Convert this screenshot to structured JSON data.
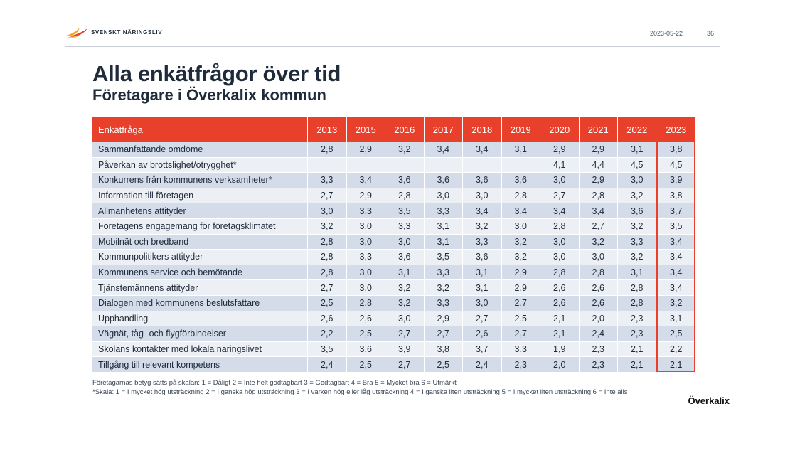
{
  "header": {
    "logo_text": "SVENSKT NÄRINGSLIV",
    "date": "2023-05-22",
    "page_number": "36"
  },
  "title": "Alla enkätfrågor över tid",
  "subtitle": "Företagare i Överkalix kommun",
  "table": {
    "question_header": "Enkätfråga",
    "years": [
      "2013",
      "2015",
      "2016",
      "2017",
      "2018",
      "2019",
      "2020",
      "2021",
      "2022",
      "2023"
    ],
    "rows": [
      {
        "q": "Sammanfattande omdöme",
        "v": [
          "2,8",
          "2,9",
          "3,2",
          "3,4",
          "3,4",
          "3,1",
          "2,9",
          "2,9",
          "3,1",
          "3,8"
        ]
      },
      {
        "q": "Påverkan av brottslighet/otrygghet*",
        "v": [
          "",
          "",
          "",
          "",
          "",
          "",
          "4,1",
          "4,4",
          "4,5",
          "4,5"
        ]
      },
      {
        "q": "Konkurrens från kommunens verksamheter*",
        "v": [
          "3,3",
          "3,4",
          "3,6",
          "3,6",
          "3,6",
          "3,6",
          "3,0",
          "2,9",
          "3,0",
          "3,9"
        ]
      },
      {
        "q": "Information till företagen",
        "v": [
          "2,7",
          "2,9",
          "2,8",
          "3,0",
          "3,0",
          "2,8",
          "2,7",
          "2,8",
          "3,2",
          "3,8"
        ]
      },
      {
        "q": "Allmänhetens attityder",
        "v": [
          "3,0",
          "3,3",
          "3,5",
          "3,3",
          "3,4",
          "3,4",
          "3,4",
          "3,4",
          "3,6",
          "3,7"
        ]
      },
      {
        "q": "Företagens engagemang för företagsklimatet",
        "v": [
          "3,2",
          "3,0",
          "3,3",
          "3,1",
          "3,2",
          "3,0",
          "2,8",
          "2,7",
          "3,2",
          "3,5"
        ]
      },
      {
        "q": "Mobilnät och bredband",
        "v": [
          "2,8",
          "3,0",
          "3,0",
          "3,1",
          "3,3",
          "3,2",
          "3,0",
          "3,2",
          "3,3",
          "3,4"
        ]
      },
      {
        "q": "Kommunpolitikers attityder",
        "v": [
          "2,8",
          "3,3",
          "3,6",
          "3,5",
          "3,6",
          "3,2",
          "3,0",
          "3,0",
          "3,2",
          "3,4"
        ]
      },
      {
        "q": "Kommunens service och bemötande",
        "v": [
          "2,8",
          "3,0",
          "3,1",
          "3,3",
          "3,1",
          "2,9",
          "2,8",
          "2,8",
          "3,1",
          "3,4"
        ]
      },
      {
        "q": "Tjänstemännens attityder",
        "v": [
          "2,7",
          "3,0",
          "3,2",
          "3,2",
          "3,1",
          "2,9",
          "2,6",
          "2,6",
          "2,8",
          "3,4"
        ]
      },
      {
        "q": "Dialogen med kommunens beslutsfattare",
        "v": [
          "2,5",
          "2,8",
          "3,2",
          "3,3",
          "3,0",
          "2,7",
          "2,6",
          "2,6",
          "2,8",
          "3,2"
        ]
      },
      {
        "q": "Upphandling",
        "v": [
          "2,6",
          "2,6",
          "3,0",
          "2,9",
          "2,7",
          "2,5",
          "2,1",
          "2,0",
          "2,3",
          "3,1"
        ]
      },
      {
        "q": "Vägnät, tåg- och flygförbindelser",
        "v": [
          "2,2",
          "2,5",
          "2,7",
          "2,7",
          "2,6",
          "2,7",
          "2,1",
          "2,4",
          "2,3",
          "2,5"
        ]
      },
      {
        "q": "Skolans kontakter med lokala näringslivet",
        "v": [
          "3,5",
          "3,6",
          "3,9",
          "3,8",
          "3,7",
          "3,3",
          "1,9",
          "2,3",
          "2,1",
          "2,2"
        ]
      },
      {
        "q": "Tillgång till relevant kompetens",
        "v": [
          "2,4",
          "2,5",
          "2,7",
          "2,5",
          "2,4",
          "2,3",
          "2,0",
          "2,3",
          "2,1",
          "2,1"
        ]
      }
    ]
  },
  "notes": {
    "scale1": "Företagarnas betyg sätts på skalan: 1 = Dåligt 2 = Inte helt godtagbart 3 = Godtagbart 4 = Bra 5 = Mycket bra 6 = Utmärkt",
    "scale2": "*Skala: 1 = I mycket hög utsträckning 2 = I ganska hög utsträckning 3 = I varken hög eller låg utsträckning 4 = I ganska liten utsträckning 5 = I mycket liten utsträckning 6 = Inte alls"
  },
  "place": "Överkalix",
  "colors": {
    "accent": "#e8402a",
    "row_dark": "#d3dce8",
    "row_light": "#ecf0f5",
    "text": "#1f2a3a"
  }
}
